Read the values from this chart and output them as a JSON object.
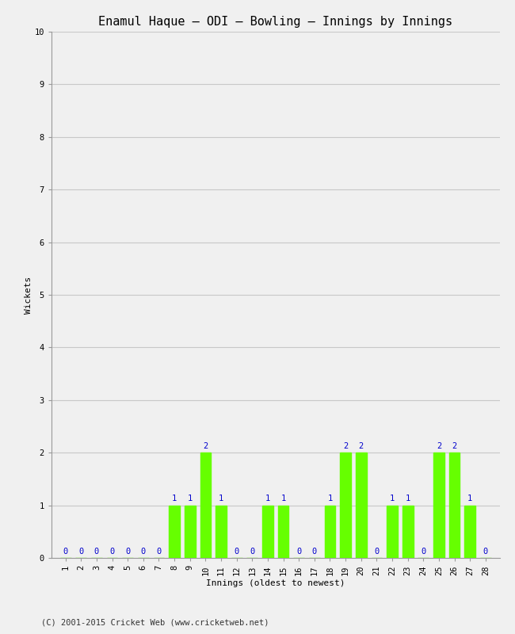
{
  "title": "Enamul Haque – ODI – Bowling – Innings by Innings",
  "xlabel": "Innings (oldest to newest)",
  "ylabel": "Wickets",
  "background_color": "#f0f0f0",
  "bar_color": "#66ff00",
  "label_color": "#0000cc",
  "grid_color": "#c8c8c8",
  "ylim": [
    0,
    10
  ],
  "yticks": [
    0,
    1,
    2,
    3,
    4,
    5,
    6,
    7,
    8,
    9,
    10
  ],
  "innings": [
    1,
    2,
    3,
    4,
    5,
    6,
    7,
    8,
    9,
    10,
    11,
    12,
    13,
    14,
    15,
    16,
    17,
    18,
    19,
    20,
    21,
    22,
    23,
    24,
    25,
    26,
    27,
    28
  ],
  "wickets": [
    0,
    0,
    0,
    0,
    0,
    0,
    0,
    1,
    1,
    2,
    1,
    0,
    0,
    1,
    1,
    0,
    0,
    1,
    2,
    2,
    0,
    1,
    1,
    0,
    2,
    2,
    1,
    0
  ],
  "footer": "(C) 2001-2015 Cricket Web (www.cricketweb.net)",
  "title_fontsize": 11,
  "label_fontsize": 8,
  "tick_fontsize": 7.5,
  "bar_label_fontsize": 7.5,
  "footer_fontsize": 7.5
}
